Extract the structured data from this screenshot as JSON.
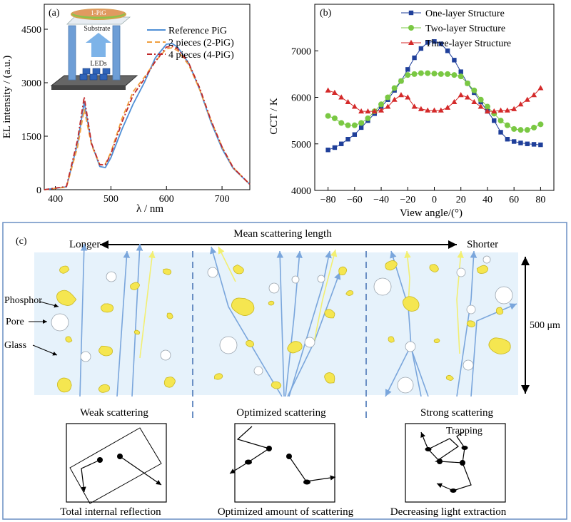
{
  "panel_a": {
    "label": "(a)",
    "inset": {
      "pig_label": "1-PiG",
      "substrate_label": "Substrate",
      "leds_label": "LEDs"
    }
  },
  "panel_b": {
    "label": "(b)"
  },
  "panel_c": {
    "label": "(c)",
    "longer": "Longer",
    "shorter": "Shorter",
    "mean_scattering_length": "Mean scattering length",
    "phosphor": "Phosphor",
    "pore": "Pore",
    "glass": "Glass",
    "thickness": "500 μm",
    "sections": [
      {
        "title": "Weak scattering",
        "caption": "Total internal reflection"
      },
      {
        "title": "Optimized scattering",
        "caption": "Optimized amount of scattering"
      },
      {
        "title": "Strong scattering",
        "caption": "Decreasing light extraction",
        "note": "Trapping"
      }
    ]
  },
  "colors": {
    "reference": "#4f8fd6",
    "two_pig": "#f0a040",
    "four_pig": "#c0282a",
    "one_layer": "#1f3f9a",
    "two_layer": "#7ac843",
    "three_layer": "#d42a2a",
    "glass_bg": "#e6f2fb",
    "phosphor": "#f5e650",
    "blue_ray": "#7aa6dc",
    "yellow_ray": "#f2ef72",
    "frame": "#6a8fc4"
  },
  "chart_data": [
    {
      "type": "line",
      "xlabel": "λ / nm",
      "ylabel": "EL intensity / (a.u.)",
      "xlim": [
        380,
        750
      ],
      "ylim": [
        0,
        5200
      ],
      "xticks": [
        400,
        500,
        600,
        700
      ],
      "yticks": [
        0,
        1500,
        3000,
        4500
      ],
      "legend_position": "top-right",
      "series": [
        {
          "name": "Reference PiG",
          "x": [
            380,
            420,
            440,
            452,
            465,
            480,
            490,
            500,
            520,
            540,
            560,
            580,
            600,
            610,
            620,
            640,
            660,
            680,
            700,
            720,
            750
          ],
          "values": [
            0,
            80,
            1300,
            2450,
            1300,
            650,
            620,
            900,
            1700,
            2400,
            3000,
            3700,
            4080,
            4100,
            4000,
            3550,
            2800,
            1900,
            1150,
            600,
            150
          ]
        },
        {
          "name": "2 pieces (2-PiG)",
          "x": [
            380,
            420,
            440,
            452,
            465,
            480,
            490,
            500,
            520,
            540,
            560,
            580,
            600,
            610,
            620,
            640,
            660,
            680,
            700,
            720,
            750
          ],
          "values": [
            0,
            70,
            1200,
            2250,
            1250,
            700,
            720,
            1050,
            2000,
            2750,
            3150,
            3600,
            3950,
            3980,
            3900,
            3500,
            2800,
            1950,
            1200,
            620,
            150
          ]
        },
        {
          "name": "4 pieces (4-PiG)",
          "x": [
            380,
            420,
            440,
            452,
            465,
            480,
            490,
            500,
            520,
            540,
            560,
            580,
            600,
            610,
            620,
            640,
            660,
            680,
            700,
            720,
            750
          ],
          "values": [
            0,
            90,
            1400,
            2600,
            1300,
            700,
            700,
            1000,
            1900,
            2650,
            3100,
            3600,
            4000,
            4020,
            3950,
            3550,
            2850,
            1950,
            1200,
            620,
            150
          ]
        }
      ]
    },
    {
      "type": "line",
      "xlabel": "View angle/(°)",
      "ylabel": "CCT / K",
      "xlim": [
        -90,
        90
      ],
      "ylim": [
        4000,
        8000
      ],
      "xticks": [
        -80,
        -60,
        -40,
        -20,
        0,
        20,
        40,
        60,
        80
      ],
      "yticks": [
        4000,
        5000,
        6000,
        7000
      ],
      "legend_position": "top-right",
      "series": [
        {
          "name": "One-layer Structure",
          "x": [
            -80,
            -75,
            -70,
            -65,
            -60,
            -55,
            -50,
            -45,
            -40,
            -35,
            -30,
            -25,
            -20,
            -15,
            -10,
            -5,
            0,
            5,
            10,
            15,
            20,
            25,
            30,
            35,
            40,
            45,
            50,
            55,
            60,
            65,
            70,
            75,
            80
          ],
          "values": [
            4870,
            4920,
            5000,
            5100,
            5200,
            5350,
            5500,
            5650,
            5800,
            5950,
            6150,
            6350,
            6600,
            6850,
            7050,
            7180,
            7200,
            7150,
            7000,
            6800,
            6550,
            6300,
            6100,
            5900,
            5700,
            5500,
            5250,
            5100,
            5050,
            5020,
            5000,
            4990,
            4980
          ]
        },
        {
          "name": "Two-layer Structure",
          "x": [
            -80,
            -75,
            -70,
            -65,
            -60,
            -55,
            -50,
            -45,
            -40,
            -35,
            -30,
            -25,
            -20,
            -15,
            -10,
            -5,
            0,
            5,
            10,
            15,
            20,
            25,
            30,
            35,
            40,
            45,
            50,
            55,
            60,
            65,
            70,
            75,
            80
          ],
          "values": [
            5600,
            5550,
            5450,
            5400,
            5400,
            5450,
            5550,
            5700,
            5850,
            6000,
            6200,
            6350,
            6480,
            6500,
            6520,
            6520,
            6510,
            6500,
            6500,
            6480,
            6450,
            6300,
            6150,
            5950,
            5800,
            5650,
            5500,
            5400,
            5320,
            5300,
            5300,
            5350,
            5420
          ]
        },
        {
          "name": "Three-layer Structure",
          "x": [
            -80,
            -75,
            -70,
            -65,
            -60,
            -55,
            -50,
            -45,
            -40,
            -35,
            -30,
            -25,
            -20,
            -15,
            -10,
            -5,
            0,
            5,
            10,
            15,
            20,
            25,
            30,
            35,
            40,
            45,
            50,
            55,
            60,
            65,
            70,
            75,
            80
          ],
          "values": [
            6150,
            6100,
            6000,
            5900,
            5800,
            5700,
            5700,
            5700,
            5720,
            5800,
            5950,
            6050,
            6000,
            5800,
            5750,
            5720,
            5720,
            5720,
            5780,
            5900,
            6050,
            6000,
            5900,
            5800,
            5700,
            5700,
            5720,
            5720,
            5750,
            5850,
            5950,
            6050,
            6200
          ]
        }
      ]
    }
  ]
}
